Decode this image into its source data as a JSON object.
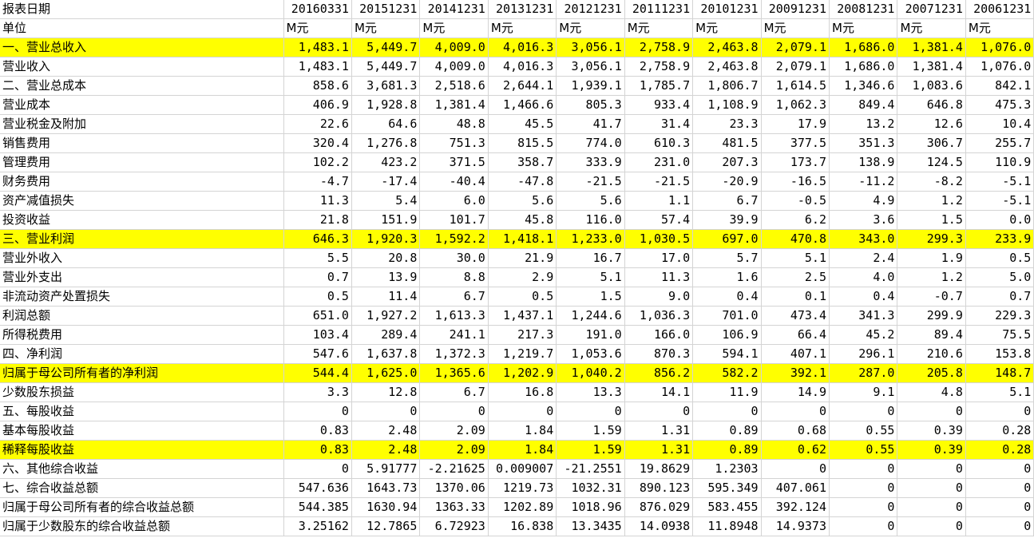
{
  "header": {
    "label": "报表日期",
    "dates": [
      "20160331",
      "20151231",
      "20141231",
      "20131231",
      "20121231",
      "20111231",
      "20101231",
      "20091231",
      "20081231",
      "20071231",
      "20061231"
    ]
  },
  "unit_row": {
    "label": "单位",
    "units": [
      "M元",
      "M元",
      "M元",
      "M元",
      "M元",
      "M元",
      "M元",
      "M元",
      "M元",
      "M元",
      "M元"
    ]
  },
  "highlight_color": "#ffff00",
  "rows": [
    {
      "label": "一、营业总收入",
      "highlight": true,
      "values": [
        "1,483.1",
        "5,449.7",
        "4,009.0",
        "4,016.3",
        "3,056.1",
        "2,758.9",
        "2,463.8",
        "2,079.1",
        "1,686.0",
        "1,381.4",
        "1,076.0"
      ]
    },
    {
      "label": "营业收入",
      "highlight": false,
      "values": [
        "1,483.1",
        "5,449.7",
        "4,009.0",
        "4,016.3",
        "3,056.1",
        "2,758.9",
        "2,463.8",
        "2,079.1",
        "1,686.0",
        "1,381.4",
        "1,076.0"
      ]
    },
    {
      "label": "二、营业总成本",
      "highlight": false,
      "values": [
        "858.6",
        "3,681.3",
        "2,518.6",
        "2,644.1",
        "1,939.1",
        "1,785.7",
        "1,806.7",
        "1,614.5",
        "1,346.6",
        "1,083.6",
        "842.1"
      ]
    },
    {
      "label": "营业成本",
      "highlight": false,
      "values": [
        "406.9",
        "1,928.8",
        "1,381.4",
        "1,466.6",
        "805.3",
        "933.4",
        "1,108.9",
        "1,062.3",
        "849.4",
        "646.8",
        "475.3"
      ]
    },
    {
      "label": "营业税金及附加",
      "highlight": false,
      "values": [
        "22.6",
        "64.6",
        "48.8",
        "45.5",
        "41.7",
        "31.4",
        "23.3",
        "17.9",
        "13.2",
        "12.6",
        "10.4"
      ]
    },
    {
      "label": "销售费用",
      "highlight": false,
      "values": [
        "320.4",
        "1,276.8",
        "751.3",
        "815.5",
        "774.0",
        "610.3",
        "481.5",
        "377.5",
        "351.3",
        "306.7",
        "255.7"
      ]
    },
    {
      "label": "管理费用",
      "highlight": false,
      "values": [
        "102.2",
        "423.2",
        "371.5",
        "358.7",
        "333.9",
        "231.0",
        "207.3",
        "173.7",
        "138.9",
        "124.5",
        "110.9"
      ]
    },
    {
      "label": "财务费用",
      "highlight": false,
      "values": [
        "-4.7",
        "-17.4",
        "-40.4",
        "-47.8",
        "-21.5",
        "-21.5",
        "-20.9",
        "-16.5",
        "-11.2",
        "-8.2",
        "-5.1"
      ]
    },
    {
      "label": "资产减值损失",
      "highlight": false,
      "values": [
        "11.3",
        "5.4",
        "6.0",
        "5.6",
        "5.6",
        "1.1",
        "6.7",
        "-0.5",
        "4.9",
        "1.2",
        "-5.1"
      ]
    },
    {
      "label": "投资收益",
      "highlight": false,
      "values": [
        "21.8",
        "151.9",
        "101.7",
        "45.8",
        "116.0",
        "57.4",
        "39.9",
        "6.2",
        "3.6",
        "1.5",
        "0.0"
      ]
    },
    {
      "label": "三、营业利润",
      "highlight": true,
      "values": [
        "646.3",
        "1,920.3",
        "1,592.2",
        "1,418.1",
        "1,233.0",
        "1,030.5",
        "697.0",
        "470.8",
        "343.0",
        "299.3",
        "233.9"
      ]
    },
    {
      "label": "营业外收入",
      "highlight": false,
      "values": [
        "5.5",
        "20.8",
        "30.0",
        "21.9",
        "16.7",
        "17.0",
        "5.7",
        "5.1",
        "2.4",
        "1.9",
        "0.5"
      ]
    },
    {
      "label": "营业外支出",
      "highlight": false,
      "values": [
        "0.7",
        "13.9",
        "8.8",
        "2.9",
        "5.1",
        "11.3",
        "1.6",
        "2.5",
        "4.0",
        "1.2",
        "5.0"
      ]
    },
    {
      "label": "非流动资产处置损失",
      "highlight": false,
      "values": [
        "0.5",
        "11.4",
        "6.7",
        "0.5",
        "1.5",
        "9.0",
        "0.4",
        "0.1",
        "0.4",
        "-0.7",
        "0.7"
      ]
    },
    {
      "label": "利润总额",
      "highlight": false,
      "values": [
        "651.0",
        "1,927.2",
        "1,613.3",
        "1,437.1",
        "1,244.6",
        "1,036.3",
        "701.0",
        "473.4",
        "341.3",
        "299.9",
        "229.3"
      ]
    },
    {
      "label": "所得税费用",
      "highlight": false,
      "values": [
        "103.4",
        "289.4",
        "241.1",
        "217.3",
        "191.0",
        "166.0",
        "106.9",
        "66.4",
        "45.2",
        "89.4",
        "75.5"
      ]
    },
    {
      "label": "四、净利润",
      "highlight": false,
      "values": [
        "547.6",
        "1,637.8",
        "1,372.3",
        "1,219.7",
        "1,053.6",
        "870.3",
        "594.1",
        "407.1",
        "296.1",
        "210.6",
        "153.8"
      ]
    },
    {
      "label": "归属于母公司所有者的净利润",
      "highlight": true,
      "values": [
        "544.4",
        "1,625.0",
        "1,365.6",
        "1,202.9",
        "1,040.2",
        "856.2",
        "582.2",
        "392.1",
        "287.0",
        "205.8",
        "148.7"
      ]
    },
    {
      "label": "少数股东损益",
      "highlight": false,
      "values": [
        "3.3",
        "12.8",
        "6.7",
        "16.8",
        "13.3",
        "14.1",
        "11.9",
        "14.9",
        "9.1",
        "4.8",
        "5.1"
      ]
    },
    {
      "label": "五、每股收益",
      "highlight": false,
      "values": [
        "0",
        "0",
        "0",
        "0",
        "0",
        "0",
        "0",
        "0",
        "0",
        "0",
        "0"
      ]
    },
    {
      "label": "基本每股收益",
      "highlight": false,
      "values": [
        "0.83",
        "2.48",
        "2.09",
        "1.84",
        "1.59",
        "1.31",
        "0.89",
        "0.68",
        "0.55",
        "0.39",
        "0.28"
      ]
    },
    {
      "label": "稀释每股收益",
      "highlight": true,
      "values": [
        "0.83",
        "2.48",
        "2.09",
        "1.84",
        "1.59",
        "1.31",
        "0.89",
        "0.62",
        "0.55",
        "0.39",
        "0.28"
      ]
    },
    {
      "label": "六、其他综合收益",
      "highlight": false,
      "values": [
        "0",
        "5.91777",
        "-2.21625",
        "0.009007",
        "-21.2551",
        "19.8629",
        "1.2303",
        "0",
        "0",
        "0",
        "0"
      ]
    },
    {
      "label": "七、综合收益总额",
      "highlight": false,
      "values": [
        "547.636",
        "1643.73",
        "1370.06",
        "1219.73",
        "1032.31",
        "890.123",
        "595.349",
        "407.061",
        "0",
        "0",
        "0"
      ]
    },
    {
      "label": "归属于母公司所有者的综合收益总额",
      "highlight": false,
      "values": [
        "544.385",
        "1630.94",
        "1363.33",
        "1202.89",
        "1018.96",
        "876.029",
        "583.455",
        "392.124",
        "0",
        "0",
        "0"
      ]
    },
    {
      "label": "归属于少数股东的综合收益总额",
      "highlight": false,
      "values": [
        "3.25162",
        "12.7865",
        "6.72923",
        "16.838",
        "13.3435",
        "14.0938",
        "11.8948",
        "14.9373",
        "0",
        "0",
        "0"
      ]
    }
  ]
}
